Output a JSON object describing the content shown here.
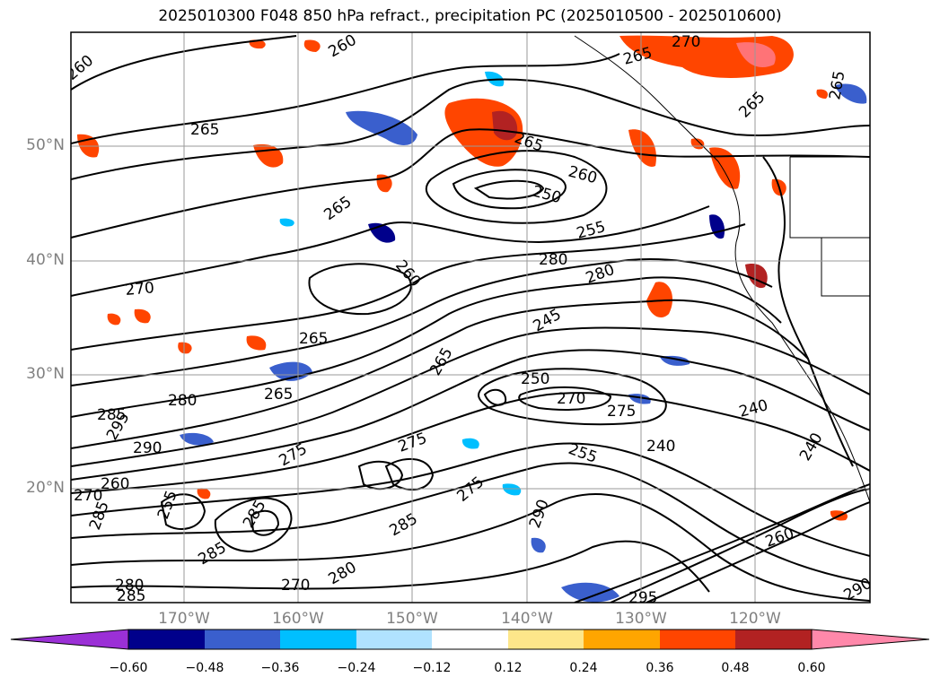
{
  "title": "2025010300 F048 850 hPa refract., precipitation PC (2025010500 - 2025010600)",
  "lat_labels": [
    "50°N",
    "40°N",
    "30°N",
    "20°N"
  ],
  "lon_labels": [
    "170°W",
    "160°W",
    "150°W",
    "140°W",
    "130°W",
    "120°W"
  ],
  "colorbar": {
    "ticks": [
      "−0.60",
      "−0.48",
      "−0.36",
      "−0.24",
      "−0.12",
      "0.12",
      "0.24",
      "0.36",
      "0.48",
      "0.60"
    ],
    "colors": [
      "#9b30d6",
      "#00008b",
      "#3a5fcd",
      "#00bfff",
      "#b0e2ff",
      "#ffffff",
      "#fde68a",
      "#ffa500",
      "#ff4500",
      "#b22222",
      "#ff88aa"
    ]
  },
  "contour_labels": [
    "260",
    "265",
    "270",
    "250",
    "255",
    "280",
    "245",
    "240",
    "275",
    "285",
    "290",
    "295"
  ]
}
